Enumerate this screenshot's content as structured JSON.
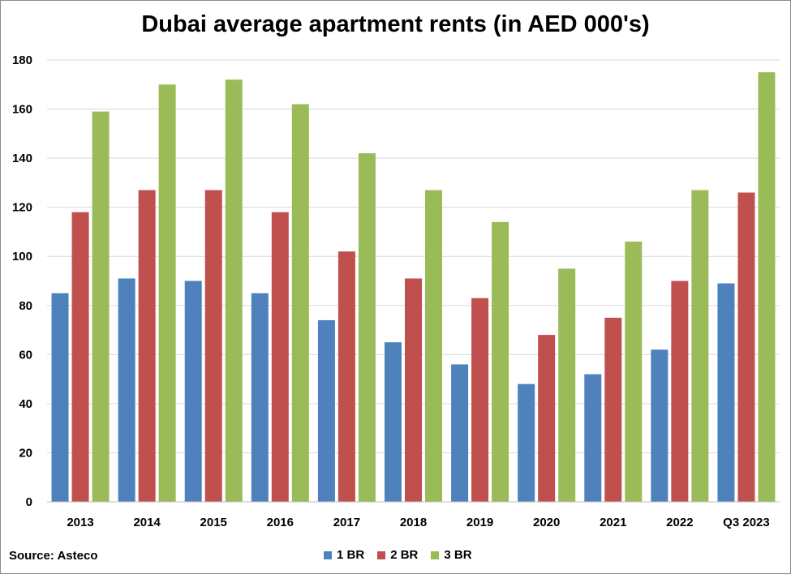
{
  "source": "Source: Asteco",
  "chart_data": {
    "type": "bar",
    "title": "Dubai average apartment rents (in AED 000's)",
    "categories": [
      "2013",
      "2014",
      "2015",
      "2016",
      "2017",
      "2018",
      "2019",
      "2020",
      "2021",
      "2022",
      "Q3 2023"
    ],
    "series": [
      {
        "name": "1 BR",
        "color": "#4f81bd",
        "values": [
          85,
          91,
          90,
          85,
          74,
          65,
          56,
          48,
          52,
          62,
          89
        ]
      },
      {
        "name": "2 BR",
        "color": "#c0504d",
        "values": [
          118,
          127,
          127,
          118,
          102,
          91,
          83,
          68,
          75,
          90,
          126
        ]
      },
      {
        "name": "3 BR",
        "color": "#9bbb59",
        "values": [
          159,
          170,
          172,
          162,
          142,
          127,
          114,
          95,
          106,
          127,
          175
        ]
      }
    ],
    "ylim": [
      0,
      180
    ],
    "yticks": [
      0,
      20,
      40,
      60,
      80,
      100,
      120,
      140,
      160,
      180
    ],
    "grid": true,
    "legend_position": "bottom"
  }
}
